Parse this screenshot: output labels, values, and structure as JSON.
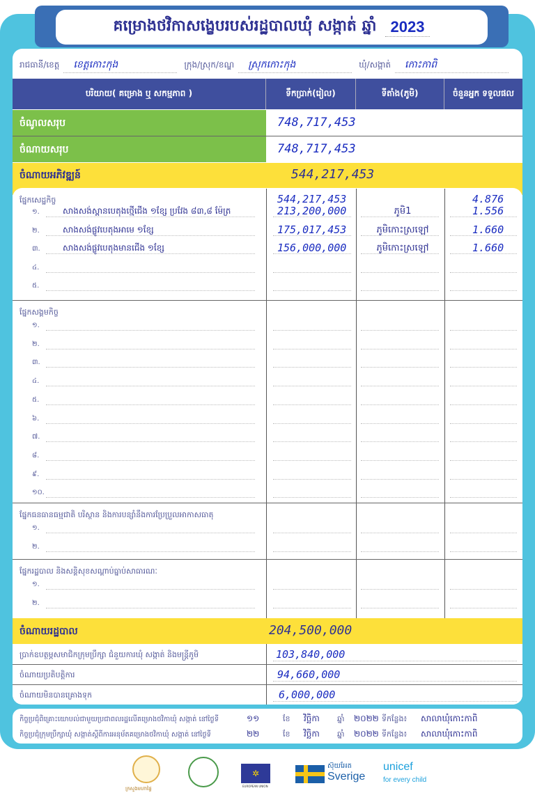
{
  "title": {
    "text": "គម្រោងថវិកាសង្ខេបរបស់រដ្ឋបាលឃុំ សង្កាត់ ឆ្នាំ",
    "year": "2023"
  },
  "info": {
    "province_label": "រាជធានី/ខេត្ត",
    "province": "ខេត្តកោះកុង",
    "district_label": "ក្រុង/ស្រុក/ខណ្ឌ",
    "district": "ស្រុកកោះកុង",
    "commune_label": "ឃុំ/សង្កាត់",
    "commune": "កោះកាពិ"
  },
  "header": {
    "col1": "បរិយាយ( គម្រោង ឬ សកម្មភាព )",
    "col2": "ទឹកប្រាក់(រៀល)",
    "col3": "ទីតាំង(ភូមិ)",
    "col4": "ចំនួនអ្នក ទទួលផល"
  },
  "totals": {
    "income_label": "ចំណូលសរុប",
    "income": "748,717,453",
    "expense_label": "ចំណាយសរុប",
    "expense": "748,717,453",
    "dev_label": "ចំណាយអភិវឌ្ឍន៍",
    "dev": "544,217,453",
    "admin_label": "ចំណាយរដ្ឋបាល",
    "admin": "204,500,000"
  },
  "sections": [
    {
      "title": "ផ្នែកសេដ្ឋកិច្ច",
      "amount": "544,217,453",
      "beneficiaries": "4.876",
      "rows": [
        {
          "idx": "១.",
          "desc": "សាងសង់ស្ពានបេតុងថ្មើជើង ១ខ្សែ ប្រវែង ៨៣,៨ ម៉ែត្រ",
          "amount": "213,200,000",
          "village": "ភូមិ1",
          "beneficiaries": "1.556"
        },
        {
          "idx": "២.",
          "desc": "សាងសង់ផ្លូវបេតុងអាមេ ១ខ្សែ",
          "amount": "175,017,453",
          "village": "ភូមិកោះស្រឡៅ",
          "beneficiaries": "1.660"
        },
        {
          "idx": "៣.",
          "desc": "សាងសង់ផ្លូវបេតុងមានជើង ១ខ្សែ",
          "amount": "156,000,000",
          "village": "ភូមិកោះស្រឡៅ",
          "beneficiaries": "1.660"
        },
        {
          "idx": "៤."
        },
        {
          "idx": "៥."
        }
      ]
    },
    {
      "title": "ផ្នែកសង្គមកិច្ច",
      "rows": [
        {
          "idx": "១."
        },
        {
          "idx": "២."
        },
        {
          "idx": "៣."
        },
        {
          "idx": "៤."
        },
        {
          "idx": "៥."
        },
        {
          "idx": "៦."
        },
        {
          "idx": "៧."
        },
        {
          "idx": "៨."
        },
        {
          "idx": "៩."
        },
        {
          "idx": "១០."
        }
      ]
    },
    {
      "title": "ផ្នែកធនធានធម្មជាតិ បរិស្ថាន និងការបន្សាំនឹងការប្រែប្រួលអាកាសធាតុ",
      "rows": [
        {
          "idx": "១."
        },
        {
          "idx": "២."
        }
      ]
    },
    {
      "title": "ផ្នែករដ្ឋបាល និងសន្តិសុខសណ្តាប់ធ្នាប់សាធារណៈ",
      "rows": [
        {
          "idx": "១."
        },
        {
          "idx": "២."
        }
      ]
    }
  ],
  "admin_rows": [
    {
      "label": "ប្រាក់ឧបត្ថម្ភសមាជិកក្រុមប្រឹក្សា ជំនួយការឃុំ សង្កាត់ និងមន្ត្រីភូមិ",
      "amount": "103,840,000"
    },
    {
      "label": "ចំណាយប្រតិបត្តិការ",
      "amount": "94,660,000"
    },
    {
      "label": "ចំណាយមិនបានគ្រោងទុក",
      "amount": "6,000,000"
    }
  ],
  "meetings": [
    {
      "label": "កិច្ចប្រជុំពិគ្រោះយោបល់ជាមួយប្រជាពលរដ្ឋលើគម្រោងថវិកាឃុំ សង្កាត់ នៅថ្ងៃទី",
      "day": "១១",
      "month_label": "ខែ",
      "month": "វិច្ឆិកា",
      "year_label": "ឆ្នាំ",
      "year": "២០២២",
      "place_label": "ទីកន្លែង៖",
      "place": "សាលាឃុំកោះកាពិ"
    },
    {
      "label": "កិច្ចប្រជុំក្រុមប្រឹក្សាឃុំ សង្កាត់ស្តីពីការអនុម័តគម្រោងថវិកាឃុំ សង្កាត់ នៅថ្ងៃទី",
      "day": "២២",
      "month_label": "ខែ",
      "month": "វិច្ឆិកា",
      "year_label": "ឆ្នាំ",
      "year": "២០២២",
      "place_label": "ទីកន្លែង៖",
      "place": "សាលាឃុំកោះកាពិ"
    }
  ],
  "logos": {
    "ministry": "ក្រសួងមហាផ្ទៃ",
    "eu": "EUROPEAN UNION",
    "sweden_kh": "ស៊ុយអែត",
    "sweden": "Sverige",
    "unicef": "unicef",
    "unicef_tag": "for every child"
  },
  "colors": {
    "frame": "#4fc3df",
    "header": "#3f4f9e",
    "green": "#7cc04a",
    "yellow": "#fde03a",
    "text": "#2e3192"
  }
}
